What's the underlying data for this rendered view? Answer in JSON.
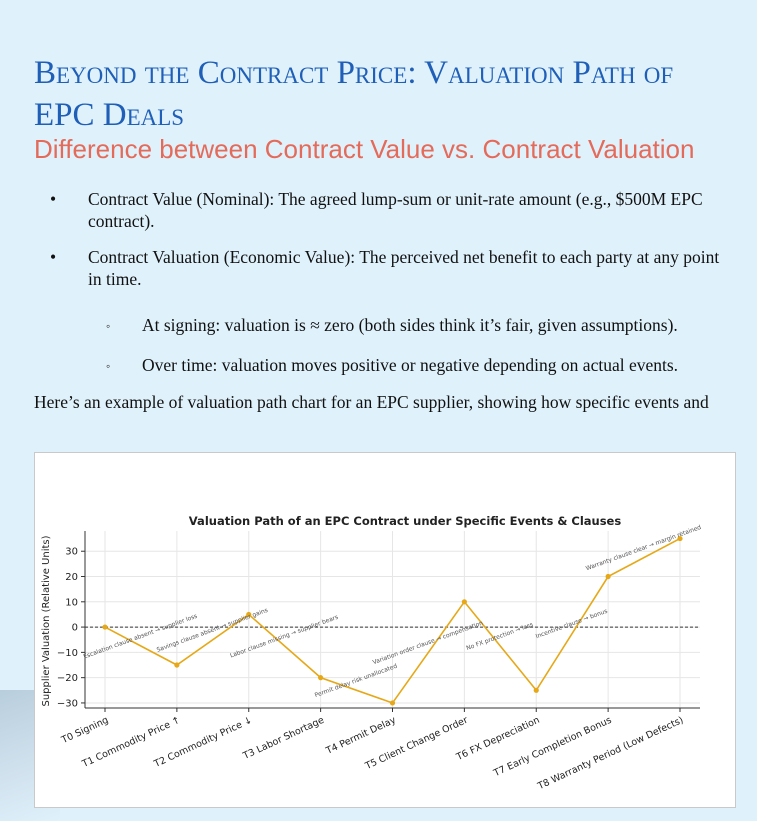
{
  "title": "Beyond the Contract Price: Valuation Path of EPC Deals",
  "subtitle": "Difference between Contract Value vs. Contract Valuation",
  "bullets": [
    {
      "text": "Contract Value (Nominal): The agreed lump-sum or unit-rate amount (e.g., $500M EPC contract)."
    },
    {
      "text": "Contract Valuation (Economic Value): The perceived net benefit to each party at any point in time."
    }
  ],
  "sub_bullets": [
    {
      "text": "At signing: valuation is ≈ zero (both sides think it’s fair, given assumptions)."
    },
    {
      "text": "Over time: valuation moves positive or negative depending on actual events."
    }
  ],
  "bullet_glyph": "•",
  "sub_bullet_glyph": "◦",
  "paragraph": "Here’s an example of valuation path chart for an EPC supplier, showing how specific events and",
  "colors": {
    "title": "#1f5fb8",
    "subtitle": "#e46a5a",
    "line": "#e6a817",
    "background": "#dff1fb"
  },
  "chart_data": {
    "type": "line",
    "title": "Valuation Path of an EPC Contract under Specific Events & Clauses",
    "ylabel": "Supplier Valuation (Relative Units)",
    "xlabel": "",
    "ylim": [
      -32,
      38
    ],
    "yticks": [
      30,
      20,
      10,
      0,
      -10,
      -20,
      -30
    ],
    "ytick_labels": [
      "30",
      "20",
      "10",
      "0",
      "−10",
      "−20",
      "−30"
    ],
    "grid": true,
    "zero_line": "dashed",
    "categories": [
      "T0 Signing",
      "T1 Commodity Price ↑",
      "T2 Commodity Price ↓",
      "T3 Labor Shortage",
      "T4 Permit Delay",
      "T5 Client Change Order",
      "T6 FX Depreciation",
      "T7 Early Completion Bonus",
      "T8 Warranty Period (Low Defects)"
    ],
    "values": [
      0,
      -15,
      5,
      -20,
      -30,
      10,
      -25,
      20,
      35
    ],
    "annotations": [
      {
        "index": 0,
        "text": "Escalation clause absent → supplier loss"
      },
      {
        "index": 1,
        "text": "Savings clause absent → supplier gains"
      },
      {
        "index": 2,
        "text": "Labor clause missing → supplier bears"
      },
      {
        "index": 3,
        "text": "Permit delay risk unallocated"
      },
      {
        "index": 4,
        "text": "Variation order clause → compensation"
      },
      {
        "index": 5,
        "text": "No FX protection → loss"
      },
      {
        "index": 6,
        "text": "Incentive clause → bonus"
      },
      {
        "index": 7,
        "text": "Warranty clause clear → margin retained"
      }
    ]
  }
}
